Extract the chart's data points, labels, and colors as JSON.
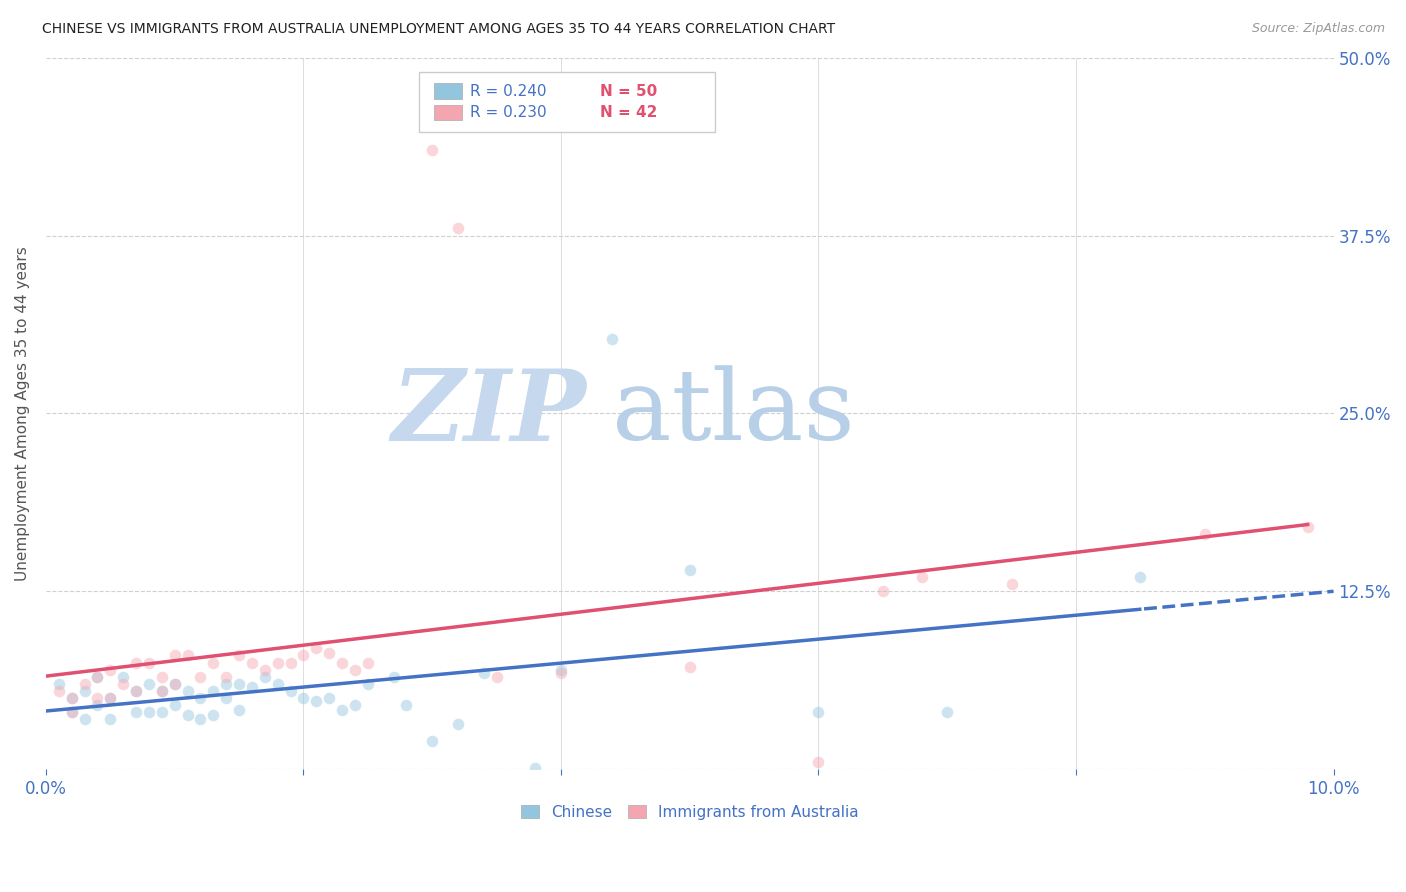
{
  "title": "CHINESE VS IMMIGRANTS FROM AUSTRALIA UNEMPLOYMENT AMONG AGES 35 TO 44 YEARS CORRELATION CHART",
  "source": "Source: ZipAtlas.com",
  "ylabel": "Unemployment Among Ages 35 to 44 years",
  "xlim": [
    0.0,
    0.1
  ],
  "ylim": [
    -0.02,
    0.52
  ],
  "plot_ylim": [
    0.0,
    0.5
  ],
  "yticks": [
    0.0,
    0.125,
    0.25,
    0.375,
    0.5
  ],
  "ytick_labels": [
    "",
    "12.5%",
    "25.0%",
    "37.5%",
    "50.0%"
  ],
  "xticks": [
    0.0,
    0.02,
    0.04,
    0.06,
    0.08,
    0.1
  ],
  "xtick_labels_bottom": [
    "0.0%",
    "",
    "",
    "",
    "",
    "10.0%"
  ],
  "series1_label": "Chinese",
  "series1_color": "#92c5de",
  "series1_R": "0.240",
  "series1_N": "50",
  "series2_label": "Immigrants from Australia",
  "series2_color": "#f4a6b0",
  "series2_R": "0.230",
  "series2_N": "42",
  "trend1_color": "#4472c4",
  "trend2_color": "#e05070",
  "chinese_x": [
    0.001,
    0.002,
    0.002,
    0.003,
    0.003,
    0.004,
    0.004,
    0.005,
    0.005,
    0.006,
    0.007,
    0.007,
    0.008,
    0.008,
    0.009,
    0.009,
    0.01,
    0.01,
    0.011,
    0.011,
    0.012,
    0.012,
    0.013,
    0.013,
    0.014,
    0.014,
    0.015,
    0.015,
    0.016,
    0.017,
    0.018,
    0.019,
    0.02,
    0.021,
    0.022,
    0.023,
    0.024,
    0.025,
    0.027,
    0.028,
    0.03,
    0.032,
    0.034,
    0.038,
    0.04,
    0.044,
    0.05,
    0.06,
    0.07,
    0.085
  ],
  "chinese_y": [
    0.06,
    0.05,
    0.04,
    0.055,
    0.035,
    0.065,
    0.045,
    0.05,
    0.035,
    0.065,
    0.055,
    0.04,
    0.06,
    0.04,
    0.055,
    0.04,
    0.06,
    0.045,
    0.055,
    0.038,
    0.05,
    0.035,
    0.055,
    0.038,
    0.05,
    0.06,
    0.06,
    0.042,
    0.058,
    0.065,
    0.06,
    0.055,
    0.05,
    0.048,
    0.05,
    0.042,
    0.045,
    0.06,
    0.065,
    0.045,
    0.02,
    0.032,
    0.068,
    0.001,
    0.07,
    0.302,
    0.14,
    0.04,
    0.04,
    0.135
  ],
  "australia_x": [
    0.001,
    0.002,
    0.002,
    0.003,
    0.004,
    0.004,
    0.005,
    0.005,
    0.006,
    0.007,
    0.007,
    0.008,
    0.009,
    0.009,
    0.01,
    0.01,
    0.011,
    0.012,
    0.013,
    0.014,
    0.015,
    0.016,
    0.017,
    0.018,
    0.019,
    0.02,
    0.021,
    0.022,
    0.023,
    0.024,
    0.025,
    0.03,
    0.032,
    0.035,
    0.04,
    0.05,
    0.06,
    0.065,
    0.068,
    0.075,
    0.09,
    0.098
  ],
  "australia_y": [
    0.055,
    0.05,
    0.04,
    0.06,
    0.065,
    0.05,
    0.07,
    0.05,
    0.06,
    0.075,
    0.055,
    0.075,
    0.065,
    0.055,
    0.08,
    0.06,
    0.08,
    0.065,
    0.075,
    0.065,
    0.08,
    0.075,
    0.07,
    0.075,
    0.075,
    0.08,
    0.085,
    0.082,
    0.075,
    0.07,
    0.075,
    0.435,
    0.38,
    0.065,
    0.068,
    0.072,
    0.005,
    0.125,
    0.135,
    0.13,
    0.165,
    0.17
  ],
  "watermark_zip": "ZIP",
  "watermark_atlas": "atlas",
  "watermark_color_zip": "#c5d8ee",
  "watermark_color_atlas": "#b8cfe8",
  "background_color": "#ffffff",
  "grid_color": "#d0d0d0",
  "title_color": "#222222",
  "axis_label_color": "#555555",
  "right_ytick_color": "#4472c4",
  "marker_size": 70,
  "marker_alpha": 0.45,
  "legend_box_color": "#ffffff",
  "legend_border_color": "#cccccc"
}
